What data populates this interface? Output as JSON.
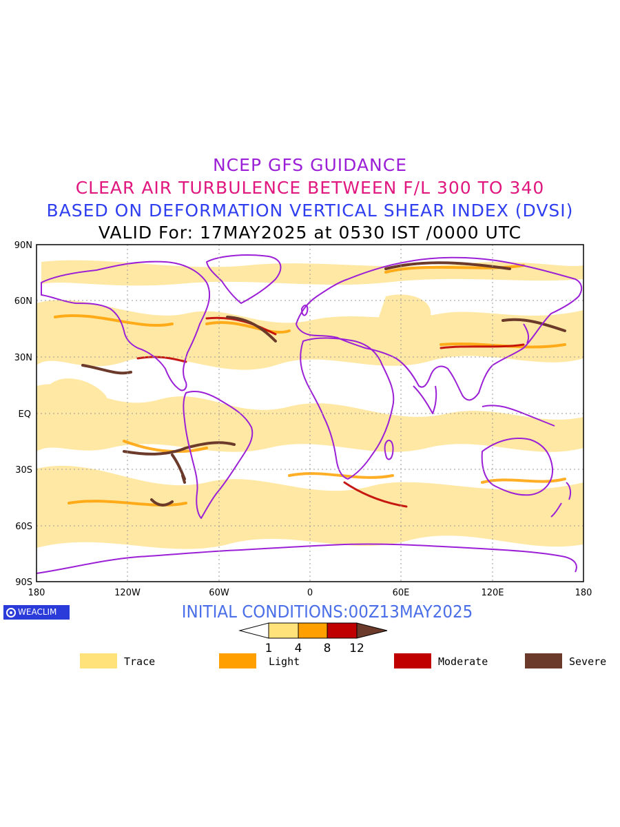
{
  "titles": {
    "line1": "NCEP GFS GUIDANCE",
    "line2": "CLEAR AIR TURBULENCE BETWEEN F/L 300 TO 340",
    "line3": "BASED ON DEFORMATION VERTICAL SHEAR INDEX (DVSI)",
    "line4": "VALID For: 17MAY2025 at 0530 IST /0000 UTC"
  },
  "map": {
    "lat_labels": [
      "90N",
      "60N",
      "30N",
      "EQ",
      "30S",
      "60S",
      "90S"
    ],
    "lon_labels": [
      "180",
      "120W",
      "60W",
      "0",
      "60E",
      "120E",
      "180"
    ],
    "projection": "cylindrical-equidistant",
    "coastline_color": "#9b1fd6"
  },
  "logo": {
    "text": "WEACLIM"
  },
  "initial_conditions": "INITIAL CONDITIONS:00Z13MAY2025",
  "colorbar": {
    "ticks": [
      "1",
      "4",
      "8",
      "12"
    ],
    "colors": [
      "#ffffff",
      "#ffe27a",
      "#ffa000",
      "#c00000",
      "#6b3a2a"
    ]
  },
  "legend": [
    {
      "label": "Trace",
      "color": "#ffe27a"
    },
    {
      "label": "Light",
      "color": "#ffa000"
    },
    {
      "label": "Moderate",
      "color": "#c00000"
    },
    {
      "label": "Severe",
      "color": "#6b3a2a"
    }
  ]
}
